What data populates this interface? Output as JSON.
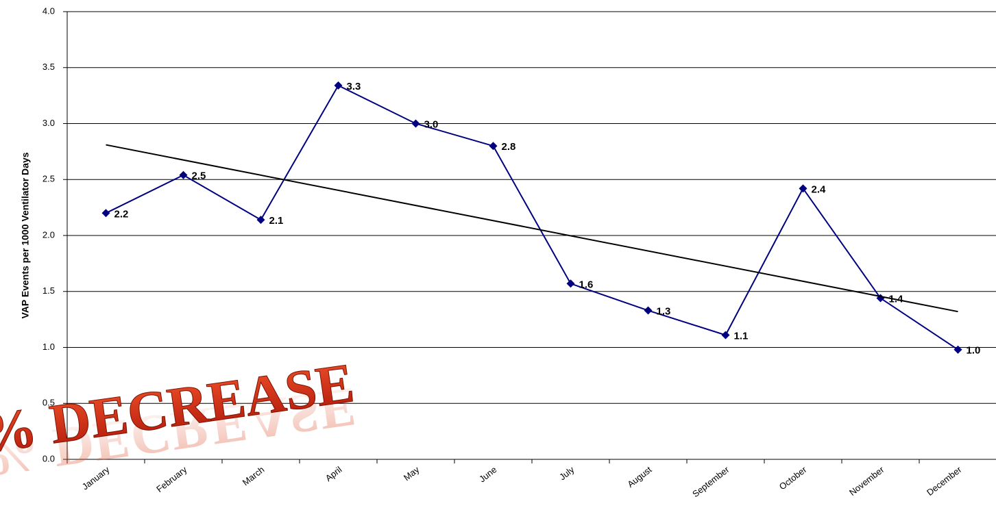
{
  "chart_data": {
    "type": "line",
    "y_label": "VAP Events per 1000 Ventilator Days",
    "annotation": "% DECREASE",
    "categories": [
      "January",
      "February",
      "March",
      "April",
      "May",
      "June",
      "July",
      "August",
      "September",
      "October",
      "November",
      "December"
    ],
    "series": [
      {
        "color": "#000080",
        "values": [
          2.2,
          2.54,
          2.14,
          3.34,
          3.0,
          2.8,
          1.57,
          1.33,
          1.11,
          2.42,
          1.44,
          0.98
        ],
        "value_labels": [
          "2.2",
          "2.5",
          "2.1",
          "3.3",
          "3.0",
          "2.8",
          "1.6",
          "1.3",
          "1.1",
          "2.4",
          "1.4",
          "1.0"
        ]
      }
    ],
    "trendline": {
      "color": "#000000",
      "values": [
        2.81,
        1.32
      ]
    },
    "ylim": [
      0,
      4
    ],
    "yticks": [
      {
        "value": 0,
        "label": "0.0"
      },
      {
        "value": 0.5,
        "label": "0.5"
      },
      {
        "value": 1,
        "label": "1.0"
      },
      {
        "value": 1.5,
        "label": "1.5"
      },
      {
        "value": 2,
        "label": "2.0"
      },
      {
        "value": 2.5,
        "label": "2.5"
      },
      {
        "value": 3,
        "label": "3.0"
      },
      {
        "value": 3.5,
        "label": "3.5"
      },
      {
        "value": 4,
        "label": "4.0"
      }
    ],
    "grid": true
  }
}
